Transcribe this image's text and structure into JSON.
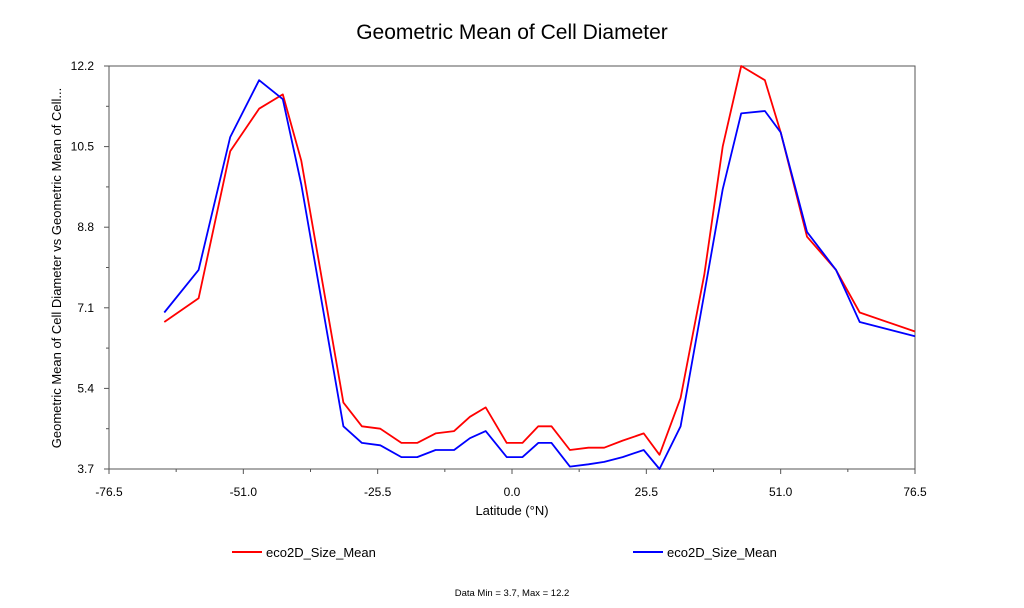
{
  "chart_data": {
    "type": "line",
    "title": "Geometric Mean of Cell Diameter",
    "xlabel": "Latitude (°N)",
    "ylabel": "Geometric Mean of Cell Diameter vs Geometric Mean of Cell...",
    "xlim": [
      -76.5,
      76.5
    ],
    "ylim": [
      3.7,
      12.2
    ],
    "x_ticks": [
      "-76.5",
      "-51.0",
      "-25.5",
      "0.0",
      "25.5",
      "51.0",
      "76.5"
    ],
    "y_ticks": [
      "3.7",
      "5.4",
      "7.1",
      "8.8",
      "10.5",
      "12.2"
    ],
    "x_tick_values": [
      -76.5,
      -51.0,
      -25.5,
      0.0,
      25.5,
      51.0,
      76.5
    ],
    "y_tick_values": [
      3.7,
      5.4,
      7.1,
      8.8,
      10.5,
      12.2
    ],
    "grid": false,
    "legend_position": "bottom",
    "series": [
      {
        "name": "eco2D_Size_Mean",
        "color": "#ff0000",
        "x": [
          -66,
          -59.5,
          -53.5,
          -48,
          -43.5,
          -40,
          -32,
          -28.5,
          -25,
          -21,
          -18,
          -14.5,
          -11,
          -8,
          -5,
          -1,
          2,
          5,
          7.5,
          11,
          14.5,
          17.5,
          21,
          25,
          28,
          32,
          36.5,
          40,
          43.5,
          48,
          51,
          56,
          61.5,
          66,
          76.5
        ],
        "y": [
          6.8,
          7.3,
          10.4,
          11.3,
          11.6,
          10.2,
          5.1,
          4.6,
          4.55,
          4.25,
          4.25,
          4.45,
          4.5,
          4.8,
          5.0,
          4.25,
          4.25,
          4.6,
          4.6,
          4.1,
          4.15,
          4.15,
          4.3,
          4.45,
          4.0,
          5.2,
          7.8,
          10.5,
          12.2,
          11.9,
          10.8,
          8.6,
          7.9,
          7.0,
          6.6
        ]
      },
      {
        "name": "eco2D_Size_Mean",
        "color": "#0000ff",
        "x": [
          -66,
          -59.5,
          -53.5,
          -48,
          -43.5,
          -40,
          -32,
          -28.5,
          -25,
          -21,
          -18,
          -14.5,
          -11,
          -8,
          -5,
          -1,
          2,
          5,
          7.5,
          11,
          14.5,
          17.5,
          21,
          25,
          28,
          32,
          36.5,
          40,
          43.5,
          48,
          51,
          56,
          61.5,
          66,
          76.5
        ],
        "y": [
          7.0,
          7.9,
          10.7,
          11.9,
          11.5,
          9.7,
          4.6,
          4.25,
          4.2,
          3.95,
          3.95,
          4.1,
          4.1,
          4.35,
          4.5,
          3.95,
          3.95,
          4.25,
          4.25,
          3.75,
          3.8,
          3.85,
          3.95,
          4.1,
          3.7,
          4.6,
          7.4,
          9.6,
          11.2,
          11.25,
          10.8,
          8.7,
          7.9,
          6.8,
          6.5
        ]
      }
    ],
    "footer": "Data Min = 3.7, Max = 12.2"
  }
}
